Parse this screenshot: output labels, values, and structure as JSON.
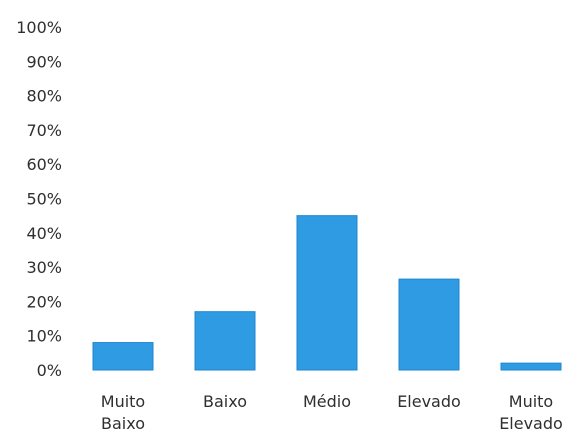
{
  "chart_data": {
    "type": "bar",
    "categories": [
      [
        "Muito",
        "Baixo"
      ],
      [
        "Baixo"
      ],
      [
        "Médio"
      ],
      [
        "Elevado"
      ],
      [
        "Muito",
        "Elevado"
      ]
    ],
    "values": [
      8,
      17,
      45,
      26.5,
      2
    ],
    "ylim": [
      0,
      100
    ],
    "yticks": [
      "0%",
      "10%",
      "20%",
      "30%",
      "40%",
      "50%",
      "60%",
      "70%",
      "80%",
      "90%",
      "100%"
    ],
    "bar_color": "#2f9be3",
    "bar_edge_color": "#1f86cf",
    "grid": false,
    "legend": "none"
  }
}
